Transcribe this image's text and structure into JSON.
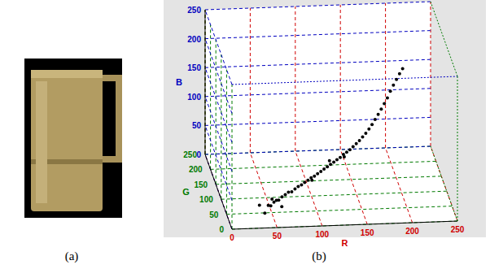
{
  "panel_labels": [
    "(a)",
    "(b)"
  ],
  "chart_data": {
    "type": "scatter3d",
    "x_label": "R",
    "y_label": "G",
    "z_label": "B",
    "xlim": [
      0,
      250
    ],
    "xticks": [
      0,
      50,
      100,
      150,
      200,
      250
    ],
    "ylim": [
      0,
      250
    ],
    "yticks": [
      0,
      50,
      100,
      150,
      200,
      250
    ],
    "zlim": [
      0,
      250
    ],
    "zticks": [
      0,
      50,
      100,
      150,
      200,
      250
    ],
    "grid": true,
    "color": "#000000",
    "marker": "circle",
    "x": [
      45,
      48,
      52,
      55,
      50,
      58,
      62,
      66,
      70,
      74,
      78,
      82,
      86,
      90,
      94,
      98,
      102,
      106,
      110,
      114,
      118,
      122,
      126,
      130,
      134,
      138,
      142,
      146,
      150,
      154,
      158,
      162,
      166,
      170,
      174,
      178,
      182,
      186,
      190,
      194,
      198,
      202,
      206,
      210,
      214,
      40,
      60,
      100,
      120,
      140,
      35
    ],
    "y": [
      40,
      42,
      46,
      48,
      47,
      52,
      55,
      58,
      62,
      65,
      68,
      72,
      75,
      79,
      82,
      86,
      89,
      93,
      96,
      100,
      103,
      107,
      110,
      114,
      117,
      121,
      124,
      128,
      132,
      136,
      140,
      144,
      148,
      152,
      157,
      162,
      167,
      172,
      177,
      182,
      188,
      193,
      198,
      203,
      208,
      30,
      40,
      95,
      100,
      130,
      38
    ],
    "z": [
      18,
      16,
      20,
      22,
      25,
      20,
      24,
      26,
      28,
      27,
      30,
      32,
      33,
      35,
      37,
      39,
      40,
      42,
      44,
      46,
      48,
      50,
      52,
      54,
      56,
      59,
      61,
      63,
      66,
      69,
      72,
      76,
      80,
      85,
      90,
      96,
      102,
      108,
      115,
      122,
      130,
      138,
      145,
      152,
      158,
      10,
      15,
      30,
      60,
      50,
      20
    ]
  }
}
